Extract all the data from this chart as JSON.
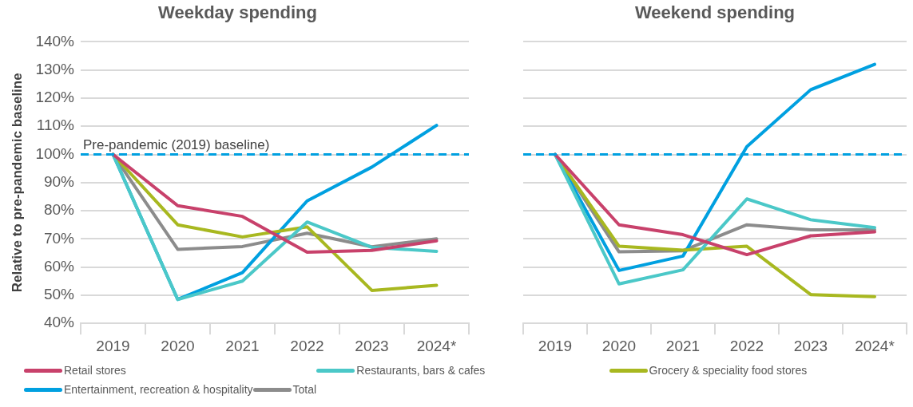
{
  "chart_data": [
    {
      "type": "line",
      "title": "Weekday spending",
      "ylabel": "Relative to pre-pandemic baseline",
      "categories": [
        "2019",
        "2020",
        "2021",
        "2022",
        "2023",
        "2024*"
      ],
      "series": [
        {
          "name": "Retail stores",
          "color": "#c8416b",
          "values": [
            100,
            81.8,
            78,
            65.3,
            65.9,
            69.3
          ]
        },
        {
          "name": "Restaurants, bars & cafes",
          "color": "#4bc8c8",
          "values": [
            100,
            48.5,
            55,
            76,
            67,
            65.6
          ]
        },
        {
          "name": "Grocery & speciality food stores",
          "color": "#a8b820",
          "values": [
            100,
            75,
            70.7,
            74.3,
            51.7,
            53.5
          ]
        },
        {
          "name": "Entertainment, recreation & hospitality",
          "color": "#00a0e0",
          "values": [
            100,
            48.5,
            58,
            83.5,
            95.5,
            110.3
          ]
        },
        {
          "name": "Total",
          "color": "#8c8c8c",
          "values": [
            100,
            66.3,
            67.3,
            72,
            67.2,
            70
          ]
        }
      ],
      "ylim": [
        40,
        140
      ],
      "yticks": [
        {
          "value": 40,
          "label": "40%"
        },
        {
          "value": 50,
          "label": "50%"
        },
        {
          "value": 60,
          "label": "60%"
        },
        {
          "value": 70,
          "label": "70%"
        },
        {
          "value": 80,
          "label": "80%"
        },
        {
          "value": 90,
          "label": "90%"
        },
        {
          "value": 100,
          "label": "100%"
        },
        {
          "value": 110,
          "label": "110%"
        },
        {
          "value": 120,
          "label": "120%"
        },
        {
          "value": 130,
          "label": "130%"
        },
        {
          "value": 140,
          "label": "140%"
        }
      ],
      "ref_lines": [
        {
          "axis": "y",
          "value": 100,
          "label": "Pre-pandemic (2019) baseline)",
          "color": "#00a0e0",
          "line_style": "dashed"
        }
      ],
      "grid": "y",
      "legend": "bottom",
      "marker": "none",
      "line_style": "solid"
    },
    {
      "type": "line",
      "title": "Weekend spending",
      "categories": [
        "2019",
        "2020",
        "2021",
        "2022",
        "2023",
        "2024*"
      ],
      "series": [
        {
          "color": "#c8416b",
          "values": [
            100,
            75,
            71.5,
            64.4,
            71.1,
            72.5
          ]
        },
        {
          "color": "#4bc8c8",
          "values": [
            100,
            54,
            59,
            84.2,
            76.8,
            74
          ]
        },
        {
          "color": "#a8b820",
          "values": [
            100,
            67.4,
            66,
            67.4,
            50.2,
            49.5
          ]
        },
        {
          "color": "#00a0e0",
          "values": [
            100,
            58.8,
            63.9,
            102.8,
            123,
            132
          ]
        },
        {
          "color": "#8c8c8c",
          "values": [
            100,
            65.4,
            65.8,
            75,
            73.2,
            73.2
          ]
        }
      ],
      "ylim": [
        40,
        140
      ],
      "yticks": [
        {
          "value": 40,
          "label": null
        },
        {
          "value": 50,
          "label": null
        },
        {
          "value": 60,
          "label": null
        },
        {
          "value": 70,
          "label": null
        },
        {
          "value": 80,
          "label": null
        },
        {
          "value": 90,
          "label": null
        },
        {
          "value": 100,
          "label": null
        },
        {
          "value": 110,
          "label": null
        },
        {
          "value": 120,
          "label": null
        },
        {
          "value": 130,
          "label": null
        },
        {
          "value": 140,
          "label": null
        }
      ],
      "ref_lines": [
        {
          "axis": "y",
          "value": 100,
          "color": "#00a0e0",
          "line_style": "dashed"
        }
      ],
      "grid": "y",
      "marker": "none",
      "line_style": "solid",
      "tick_labels": "x"
    }
  ]
}
